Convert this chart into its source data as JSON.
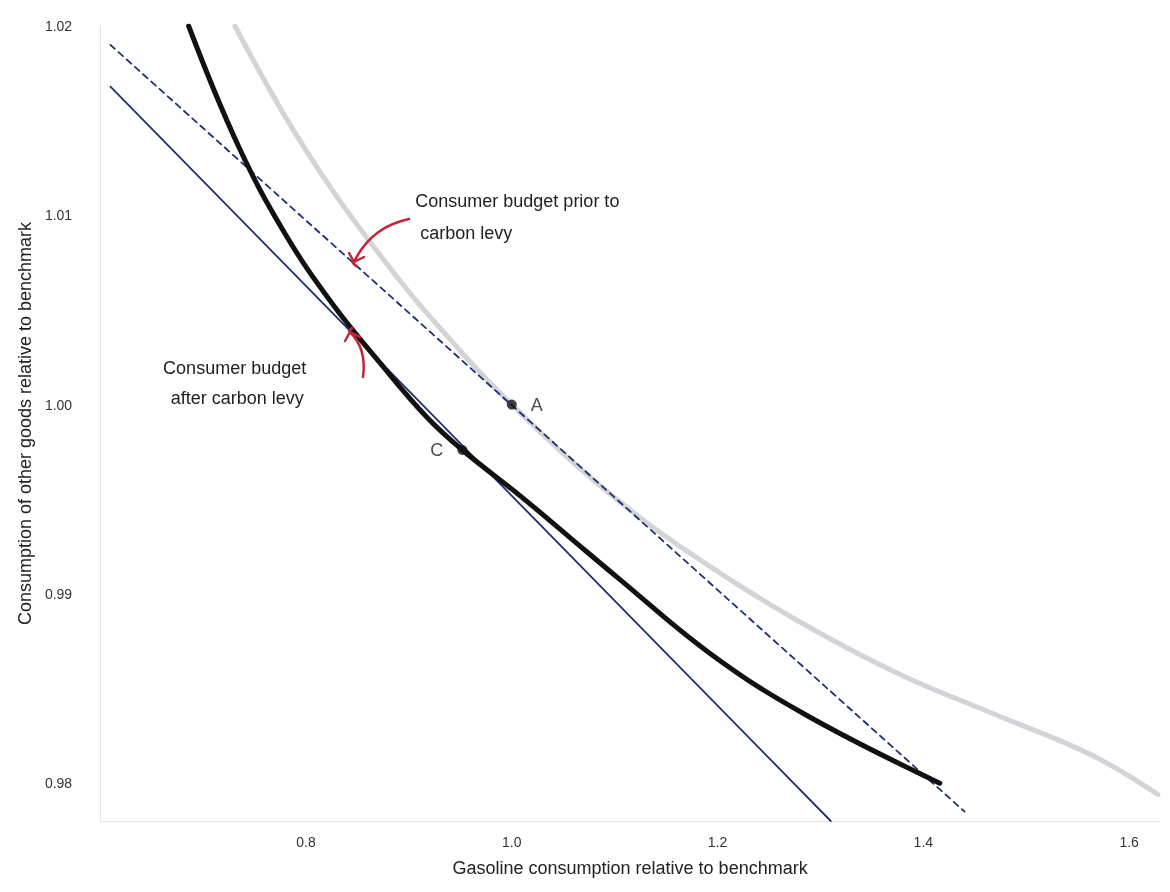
{
  "chart_data": {
    "type": "line",
    "xlabel": "Gasoline consumption relative to benchmark",
    "ylabel": "Consumption of other goods relative to benchmark",
    "xlim": [
      0.6,
      1.63
    ],
    "ylim": [
      0.978,
      1.02
    ],
    "xticks": [
      0.8,
      {
        "value": 1,
        "label": "1.0"
      },
      1.2,
      1.4,
      1.6
    ],
    "yticks": [
      0.98,
      0.99,
      {
        "value": 1,
        "label": "1.00"
      },
      1.01,
      1.02
    ],
    "marker": "none",
    "series": [
      {
        "color": "#d3d3d8",
        "line_style": "solid",
        "x": [
          0.731,
          0.78,
          0.826,
          0.872,
          0.918,
          1.0,
          1.102,
          1.194,
          1.287,
          1.379,
          1.471,
          1.563,
          1.628
        ],
        "values": [
          1.02,
          1.0152,
          1.0113,
          1.0079,
          1.0048,
          1.0,
          0.995,
          0.9914,
          0.9883,
          0.9857,
          0.9836,
          0.9815,
          0.9794
        ]
      },
      {
        "color": "#1f2d7a",
        "line_style": "dashed",
        "x": [
          0.61,
          1.44
        ],
        "values": [
          1.019,
          0.9785
        ]
      },
      {
        "color": "#1f2d7a",
        "line_style": "solid",
        "x": [
          0.61,
          1.31
        ],
        "values": [
          1.0168,
          0.978
        ]
      },
      {
        "color": "#111111",
        "line_style": "solid",
        "x": [
          0.686,
          0.734,
          0.78,
          0.826,
          0.872,
          0.918,
          0.952,
          1.01,
          1.056,
          1.102,
          1.194,
          1.286,
          1.416
        ],
        "values": [
          1.02,
          1.0137,
          1.009,
          1.0053,
          1.0022,
          0.9993,
          0.9976,
          0.9951,
          0.993,
          0.9909,
          0.9868,
          0.9836,
          0.98
        ]
      },
      {
        "type": "scatter",
        "marker": "circle",
        "color": "#111111",
        "x": [
          1.0,
          0.952
        ],
        "values": [
          1.0,
          0.9976
        ],
        "value_labels": [
          "A",
          "C"
        ]
      }
    ],
    "annotations": [
      {
        "text": "Consumer budget prior to carbon levy",
        "x": 0.846,
        "y": 1.0075
      },
      {
        "text": "Consumer budget after carbon levy",
        "x": 0.842,
        "y": 1.0039
      }
    ]
  }
}
